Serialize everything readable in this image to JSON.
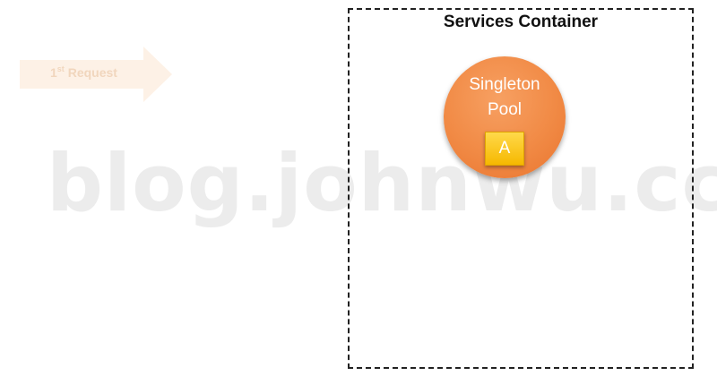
{
  "watermark": "blog.johnwu.cc",
  "request": {
    "ordinal": "1",
    "ordinal_suffix": "st",
    "label": "Request"
  },
  "container": {
    "title": "Services Container"
  },
  "pool": {
    "label": "Singleton\nPool",
    "instance": "A"
  },
  "colors": {
    "pool_orange": "#f18a45",
    "instance_yellow": "#f6b800",
    "request_arrow_faded": "#fdf1e6"
  }
}
